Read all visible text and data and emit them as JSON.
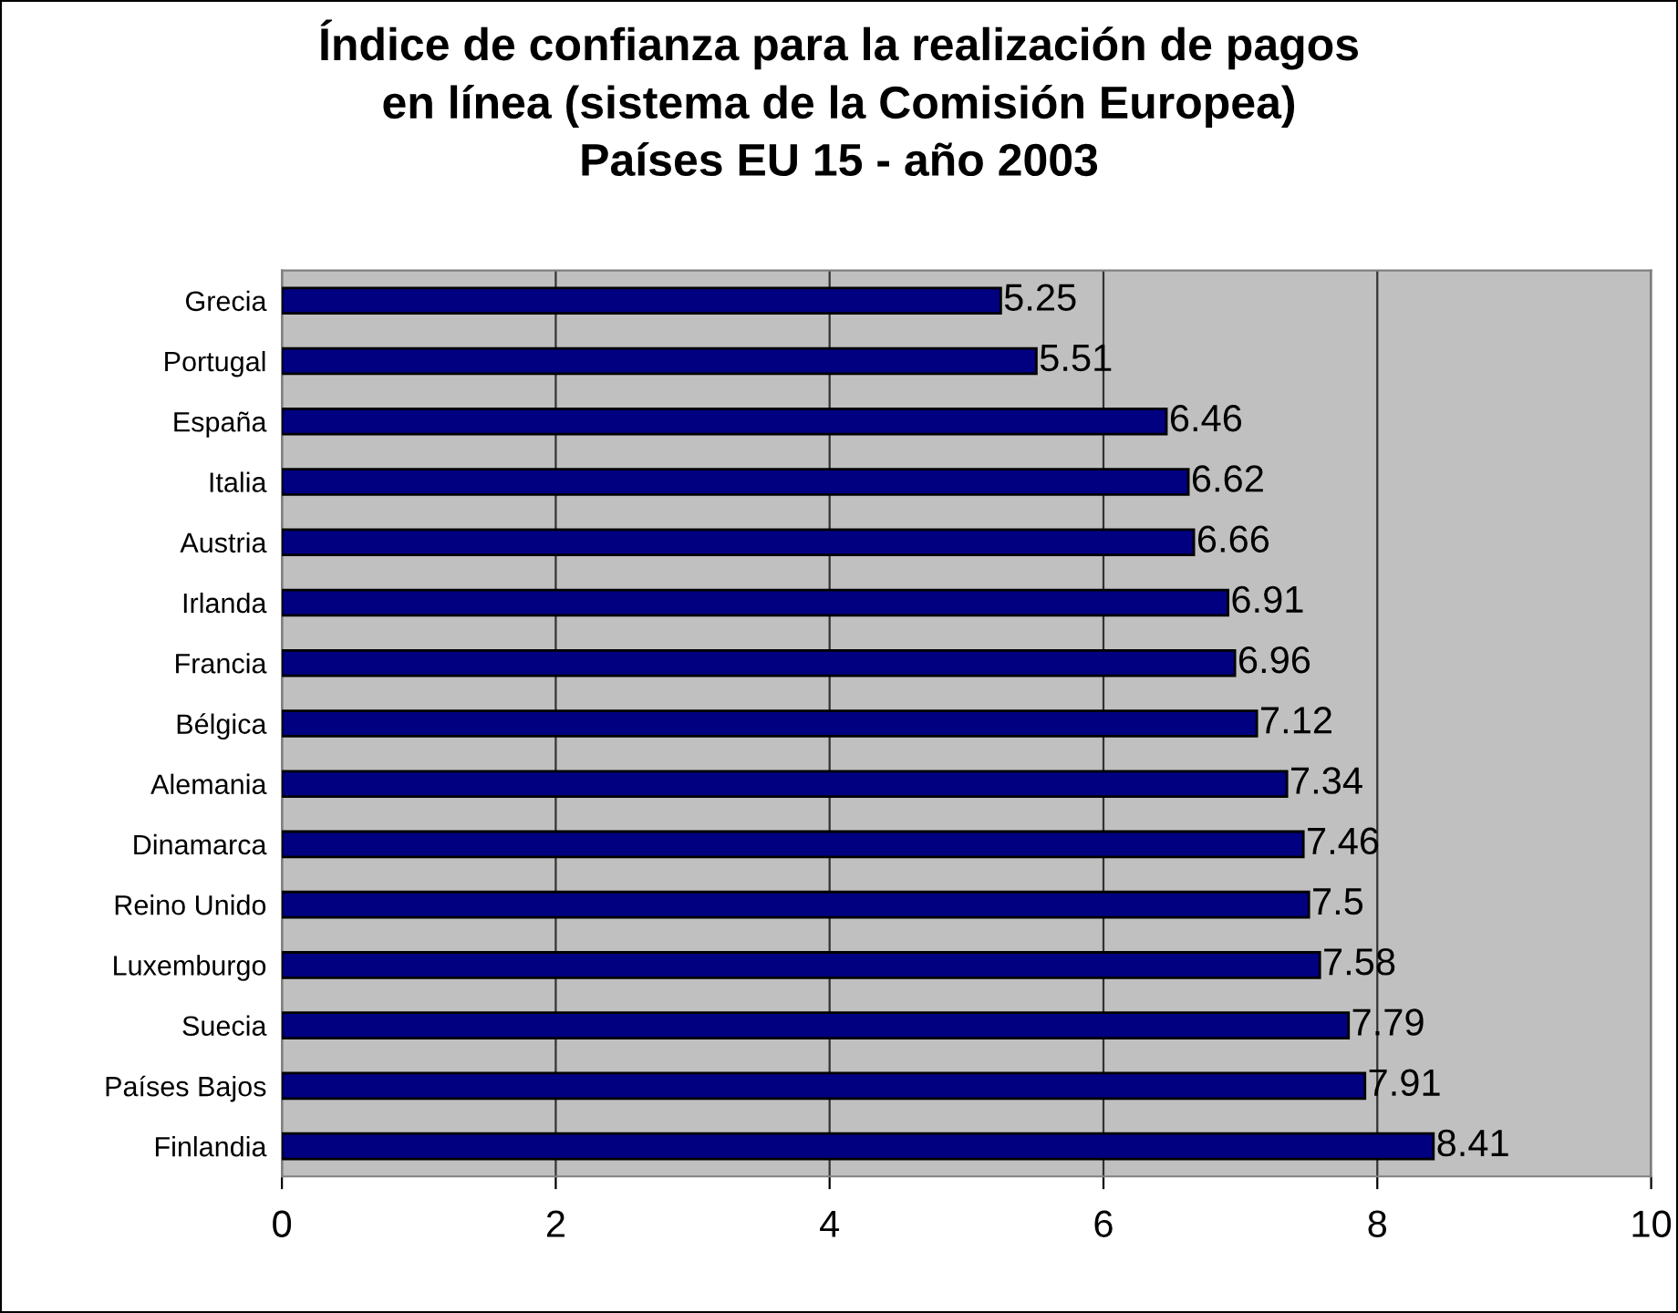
{
  "chart_data": {
    "type": "bar",
    "orientation": "horizontal",
    "title": "Índice de confianza para la realización de pagos\nen línea (sistema de la Comisión Europea)\nPaíses EU 15 - año 2003",
    "categories": [
      "Grecia",
      "Portugal",
      "España",
      "Italia",
      "Austria",
      "Irlanda",
      "Francia",
      "Bélgica",
      "Alemania",
      "Dinamarca",
      "Reino Unido",
      "Luxemburgo",
      "Suecia",
      "Países Bajos",
      "Finlandia"
    ],
    "values": [
      5.25,
      5.51,
      6.46,
      6.62,
      6.66,
      6.91,
      6.96,
      7.12,
      7.34,
      7.46,
      7.5,
      7.58,
      7.79,
      7.91,
      8.41
    ],
    "color": "#000080",
    "xlim": [
      0,
      10
    ],
    "xticks": [
      0,
      2,
      4,
      6,
      8,
      10
    ],
    "grid": "x",
    "data_labels": true
  }
}
